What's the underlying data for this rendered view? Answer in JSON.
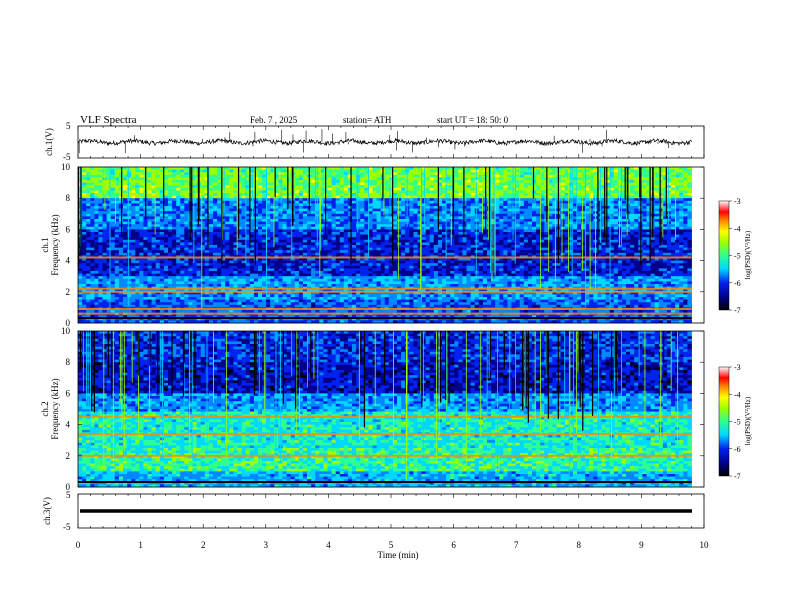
{
  "header": {
    "title": "VLF  Spectra",
    "date": "Feb. 7  , 2025",
    "station": "station= ATH",
    "start": "start  UT  =   18: 50: 0"
  },
  "chart_data": [
    {
      "type": "line",
      "panel": "ch1-waveform",
      "ylabel": "ch.1(V)",
      "ylim": [
        -5,
        5
      ],
      "yticks": [
        "5",
        "-5"
      ],
      "xlim": [
        0,
        10
      ],
      "trace_range_min": [
        0,
        9.8
      ],
      "baseline_v": 0
    },
    {
      "type": "heatmap",
      "panel": "ch1-spectrogram",
      "ylabel_top": "ch.1",
      "ylabel": "Frequency  (kHz)",
      "ylim": [
        0,
        10
      ],
      "yticks": [
        "0",
        "2",
        "4",
        "6",
        "8",
        "10"
      ],
      "xlim": [
        0,
        10
      ],
      "colorbar": {
        "label": "log(PSD)(V²/Hz)",
        "range": [
          -7,
          -3
        ],
        "ticks": [
          "-3",
          "-4",
          "-5",
          "-6",
          "-7"
        ]
      },
      "bands_khz": [
        0.3,
        0.6,
        0.9,
        2.0,
        2.2,
        4.2
      ]
    },
    {
      "type": "heatmap",
      "panel": "ch2-spectrogram",
      "ylabel_top": "ch.2",
      "ylabel": "Frequency  (kHz)",
      "ylim": [
        0,
        10
      ],
      "yticks": [
        "0",
        "2",
        "4",
        "6",
        "8",
        "10"
      ],
      "xlim": [
        0,
        10
      ],
      "colorbar": {
        "label": "log(PSD)(V²/Hz)",
        "range": [
          -7,
          -3
        ],
        "ticks": [
          "-3",
          "-4",
          "-5",
          "-6",
          "-7"
        ]
      },
      "bands_khz": [
        2.0,
        3.4,
        4.5
      ]
    },
    {
      "type": "line",
      "panel": "ch3-waveform",
      "ylabel": "ch.3(V)",
      "ylim": [
        -5,
        5
      ],
      "yticks": [
        "5",
        "-5"
      ],
      "xlim": [
        0,
        10
      ],
      "baseline_v": 0,
      "xlabel": "Time  (min)",
      "xticks": [
        "0",
        "1",
        "2",
        "3",
        "4",
        "5",
        "6",
        "7",
        "8",
        "9",
        "10"
      ]
    }
  ],
  "colors": {
    "palette": [
      "#000000",
      "#00008b",
      "#0022ee",
      "#0088ff",
      "#00d8ff",
      "#30ff90",
      "#9cff00",
      "#ffff00",
      "#ff8800",
      "#ff0000",
      "#ffffff"
    ]
  }
}
